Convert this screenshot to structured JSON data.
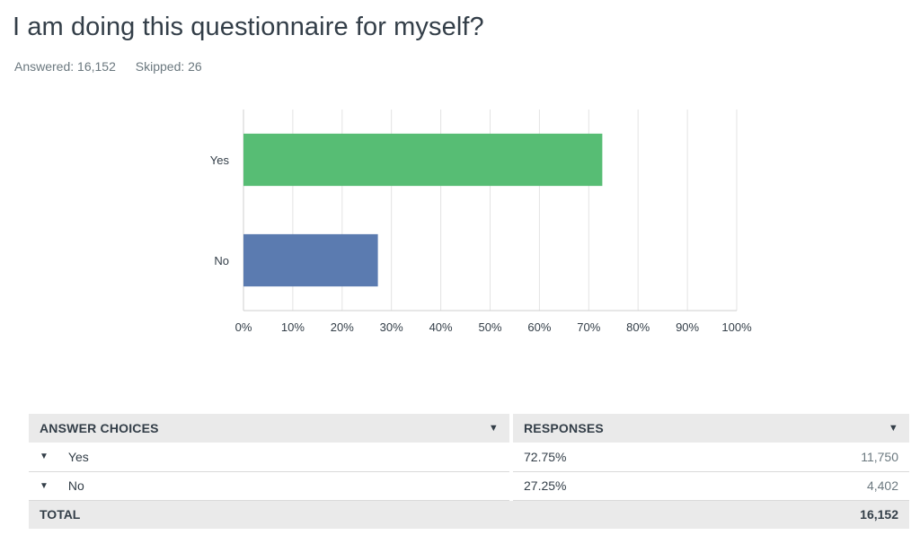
{
  "question": {
    "title": "I am doing this questionnaire for myself?",
    "answered_label": "Answered:",
    "answered_value": "16,152",
    "skipped_label": "Skipped:",
    "skipped_value": "26"
  },
  "chart_data": {
    "type": "bar",
    "orientation": "horizontal",
    "categories": [
      "Yes",
      "No"
    ],
    "values": [
      72.75,
      27.25
    ],
    "colors": [
      "#57bd74",
      "#5b7bb0"
    ],
    "xlim": [
      0,
      100
    ],
    "xticks": [
      "0%",
      "10%",
      "20%",
      "30%",
      "40%",
      "50%",
      "60%",
      "70%",
      "80%",
      "90%",
      "100%"
    ],
    "grid": true
  },
  "table": {
    "header_choices": "ANSWER CHOICES",
    "header_responses": "RESPONSES",
    "rows": [
      {
        "choice": "Yes",
        "percent": "72.75%",
        "count": "11,750"
      },
      {
        "choice": "No",
        "percent": "27.25%",
        "count": "4,402"
      }
    ],
    "total_label": "TOTAL",
    "total_value": "16,152"
  },
  "icons": {
    "sort": "caret-down-icon",
    "expand": "caret-down-icon"
  }
}
